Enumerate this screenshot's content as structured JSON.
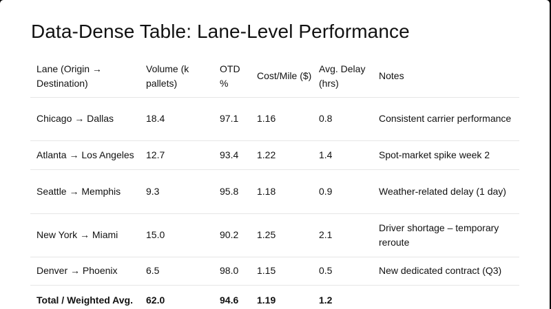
{
  "slide": {
    "title": "Data-Dense Table: Lane-Level Performance"
  },
  "table": {
    "headers": {
      "lane": "Lane (Origin → Destination)",
      "volume": "Volume (k pallets)",
      "otd": "OTD %",
      "cost": "Cost/Mile ($)",
      "delay": "Avg. Delay (hrs)",
      "notes": "Notes"
    },
    "rows": [
      {
        "lane": "Chicago → Dallas",
        "volume": "18.4",
        "otd": "97.1",
        "cost": "1.16",
        "delay": "0.8",
        "notes": "Consistent carrier performance"
      },
      {
        "lane": "Atlanta → Los Angeles",
        "volume": "12.7",
        "otd": "93.4",
        "cost": "1.22",
        "delay": "1.4",
        "notes": "Spot-market spike week 2"
      },
      {
        "lane": "Seattle → Memphis",
        "volume": "9.3",
        "otd": "95.8",
        "cost": "1.18",
        "delay": "0.9",
        "notes": "Weather-related delay (1 day)"
      },
      {
        "lane": "New York → Miami",
        "volume": "15.0",
        "otd": "90.2",
        "cost": "1.25",
        "delay": "2.1",
        "notes": "Driver shortage – temporary reroute"
      },
      {
        "lane": "Denver → Phoenix",
        "volume": "6.5",
        "otd": "98.0",
        "cost": "1.15",
        "delay": "0.5",
        "notes": "New dedicated contract (Q3)"
      }
    ],
    "total": {
      "lane": "Total / Weighted Avg.",
      "volume": "62.0",
      "otd": "94.6",
      "cost": "1.19",
      "delay": "1.2",
      "notes": ""
    }
  }
}
